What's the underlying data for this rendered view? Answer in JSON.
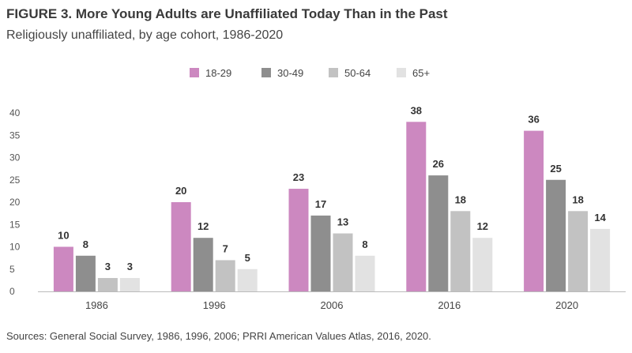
{
  "chart_data": {
    "type": "bar",
    "title": "FIGURE 3. More Young Adults are Unaffiliated Today Than in the Past",
    "subtitle": "Religiously unaffiliated, by age cohort, 1986-2020",
    "source": "Sources: General Social Survey, 1986, 1996, 2006; PRRI American Values Atlas, 2016, 2020.",
    "categories": [
      "1986",
      "1996",
      "2006",
      "2016",
      "2020"
    ],
    "series": [
      {
        "name": "18-29",
        "color": "#cc88c0",
        "values": [
          10,
          20,
          23,
          38,
          36
        ]
      },
      {
        "name": "30-49",
        "color": "#8e8e8e",
        "values": [
          8,
          12,
          17,
          26,
          25
        ]
      },
      {
        "name": "50-64",
        "color": "#c2c2c2",
        "values": [
          3,
          7,
          13,
          18,
          18
        ]
      },
      {
        "name": "65+",
        "color": "#e2e2e2",
        "values": [
          3,
          5,
          8,
          12,
          14
        ]
      }
    ],
    "ylim": [
      0,
      40
    ],
    "yticks": [
      0,
      5,
      10,
      15,
      20,
      25,
      30,
      35,
      40
    ],
    "legend_position": "top",
    "grid": false,
    "xlabel": "",
    "ylabel": ""
  }
}
